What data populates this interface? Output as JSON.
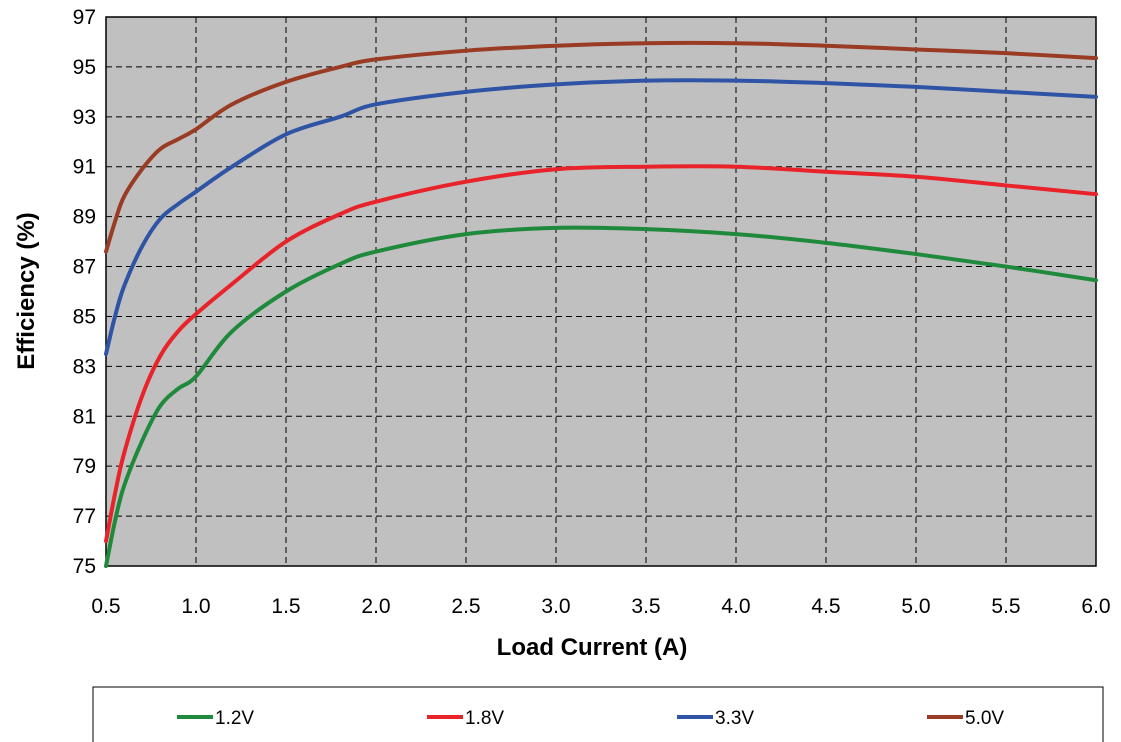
{
  "chart_data": {
    "type": "line",
    "title": "",
    "xlabel": "Load Current (A)",
    "ylabel": "Efficiency  (%)",
    "xlim": [
      0.5,
      6.0
    ],
    "ylim": [
      75,
      97
    ],
    "x_ticks": [
      "0.5",
      "1.0",
      "1.5",
      "2.0",
      "2.5",
      "3.0",
      "3.5",
      "4.0",
      "4.5",
      "5.0",
      "5.5",
      "6.0"
    ],
    "y_ticks": [
      "75",
      "77",
      "79",
      "81",
      "83",
      "85",
      "87",
      "89",
      "91",
      "93",
      "95",
      "97"
    ],
    "grid": true,
    "plot_background": "#c0c0c0",
    "legend_position": "bottom",
    "series": [
      {
        "name": "1.2V",
        "color": "#1f8a3c",
        "points": [
          [
            0.5,
            75.0
          ],
          [
            0.55,
            76.8
          ],
          [
            0.6,
            78.2
          ],
          [
            0.7,
            80.0
          ],
          [
            0.8,
            81.4
          ],
          [
            0.9,
            82.1
          ],
          [
            1.0,
            82.6
          ],
          [
            1.2,
            84.4
          ],
          [
            1.5,
            86.0
          ],
          [
            1.8,
            87.1
          ],
          [
            2.0,
            87.6
          ],
          [
            2.5,
            88.3
          ],
          [
            3.0,
            88.55
          ],
          [
            3.5,
            88.5
          ],
          [
            4.0,
            88.3
          ],
          [
            4.5,
            87.95
          ],
          [
            5.0,
            87.5
          ],
          [
            5.5,
            87.0
          ],
          [
            6.0,
            86.45
          ]
        ]
      },
      {
        "name": "1.8V",
        "color": "#e8232a",
        "points": [
          [
            0.5,
            76.0
          ],
          [
            0.55,
            77.9
          ],
          [
            0.6,
            79.5
          ],
          [
            0.7,
            81.8
          ],
          [
            0.8,
            83.4
          ],
          [
            0.9,
            84.4
          ],
          [
            1.0,
            85.1
          ],
          [
            1.2,
            86.3
          ],
          [
            1.5,
            88.0
          ],
          [
            1.8,
            89.1
          ],
          [
            2.0,
            89.6
          ],
          [
            2.5,
            90.4
          ],
          [
            3.0,
            90.9
          ],
          [
            3.5,
            91.0
          ],
          [
            4.0,
            91.0
          ],
          [
            4.5,
            90.8
          ],
          [
            5.0,
            90.6
          ],
          [
            5.5,
            90.25
          ],
          [
            6.0,
            89.9
          ]
        ]
      },
      {
        "name": "3.3V",
        "color": "#2f54a5",
        "points": [
          [
            0.5,
            83.5
          ],
          [
            0.55,
            85.0
          ],
          [
            0.6,
            86.2
          ],
          [
            0.7,
            87.8
          ],
          [
            0.8,
            88.9
          ],
          [
            0.9,
            89.5
          ],
          [
            1.0,
            90.0
          ],
          [
            1.2,
            91.0
          ],
          [
            1.5,
            92.3
          ],
          [
            1.8,
            93.0
          ],
          [
            2.0,
            93.5
          ],
          [
            2.5,
            94.0
          ],
          [
            3.0,
            94.3
          ],
          [
            3.5,
            94.45
          ],
          [
            4.0,
            94.45
          ],
          [
            4.5,
            94.35
          ],
          [
            5.0,
            94.2
          ],
          [
            5.5,
            94.0
          ],
          [
            6.0,
            93.8
          ]
        ]
      },
      {
        "name": "5.0V",
        "color": "#9a3b24",
        "points": [
          [
            0.5,
            87.6
          ],
          [
            0.55,
            88.8
          ],
          [
            0.6,
            89.8
          ],
          [
            0.7,
            90.9
          ],
          [
            0.8,
            91.7
          ],
          [
            0.9,
            92.1
          ],
          [
            1.0,
            92.5
          ],
          [
            1.2,
            93.5
          ],
          [
            1.5,
            94.4
          ],
          [
            1.8,
            95.0
          ],
          [
            2.0,
            95.3
          ],
          [
            2.5,
            95.65
          ],
          [
            3.0,
            95.85
          ],
          [
            3.5,
            95.95
          ],
          [
            4.0,
            95.95
          ],
          [
            4.5,
            95.85
          ],
          [
            5.0,
            95.7
          ],
          [
            5.5,
            95.55
          ],
          [
            6.0,
            95.35
          ]
        ]
      }
    ]
  }
}
